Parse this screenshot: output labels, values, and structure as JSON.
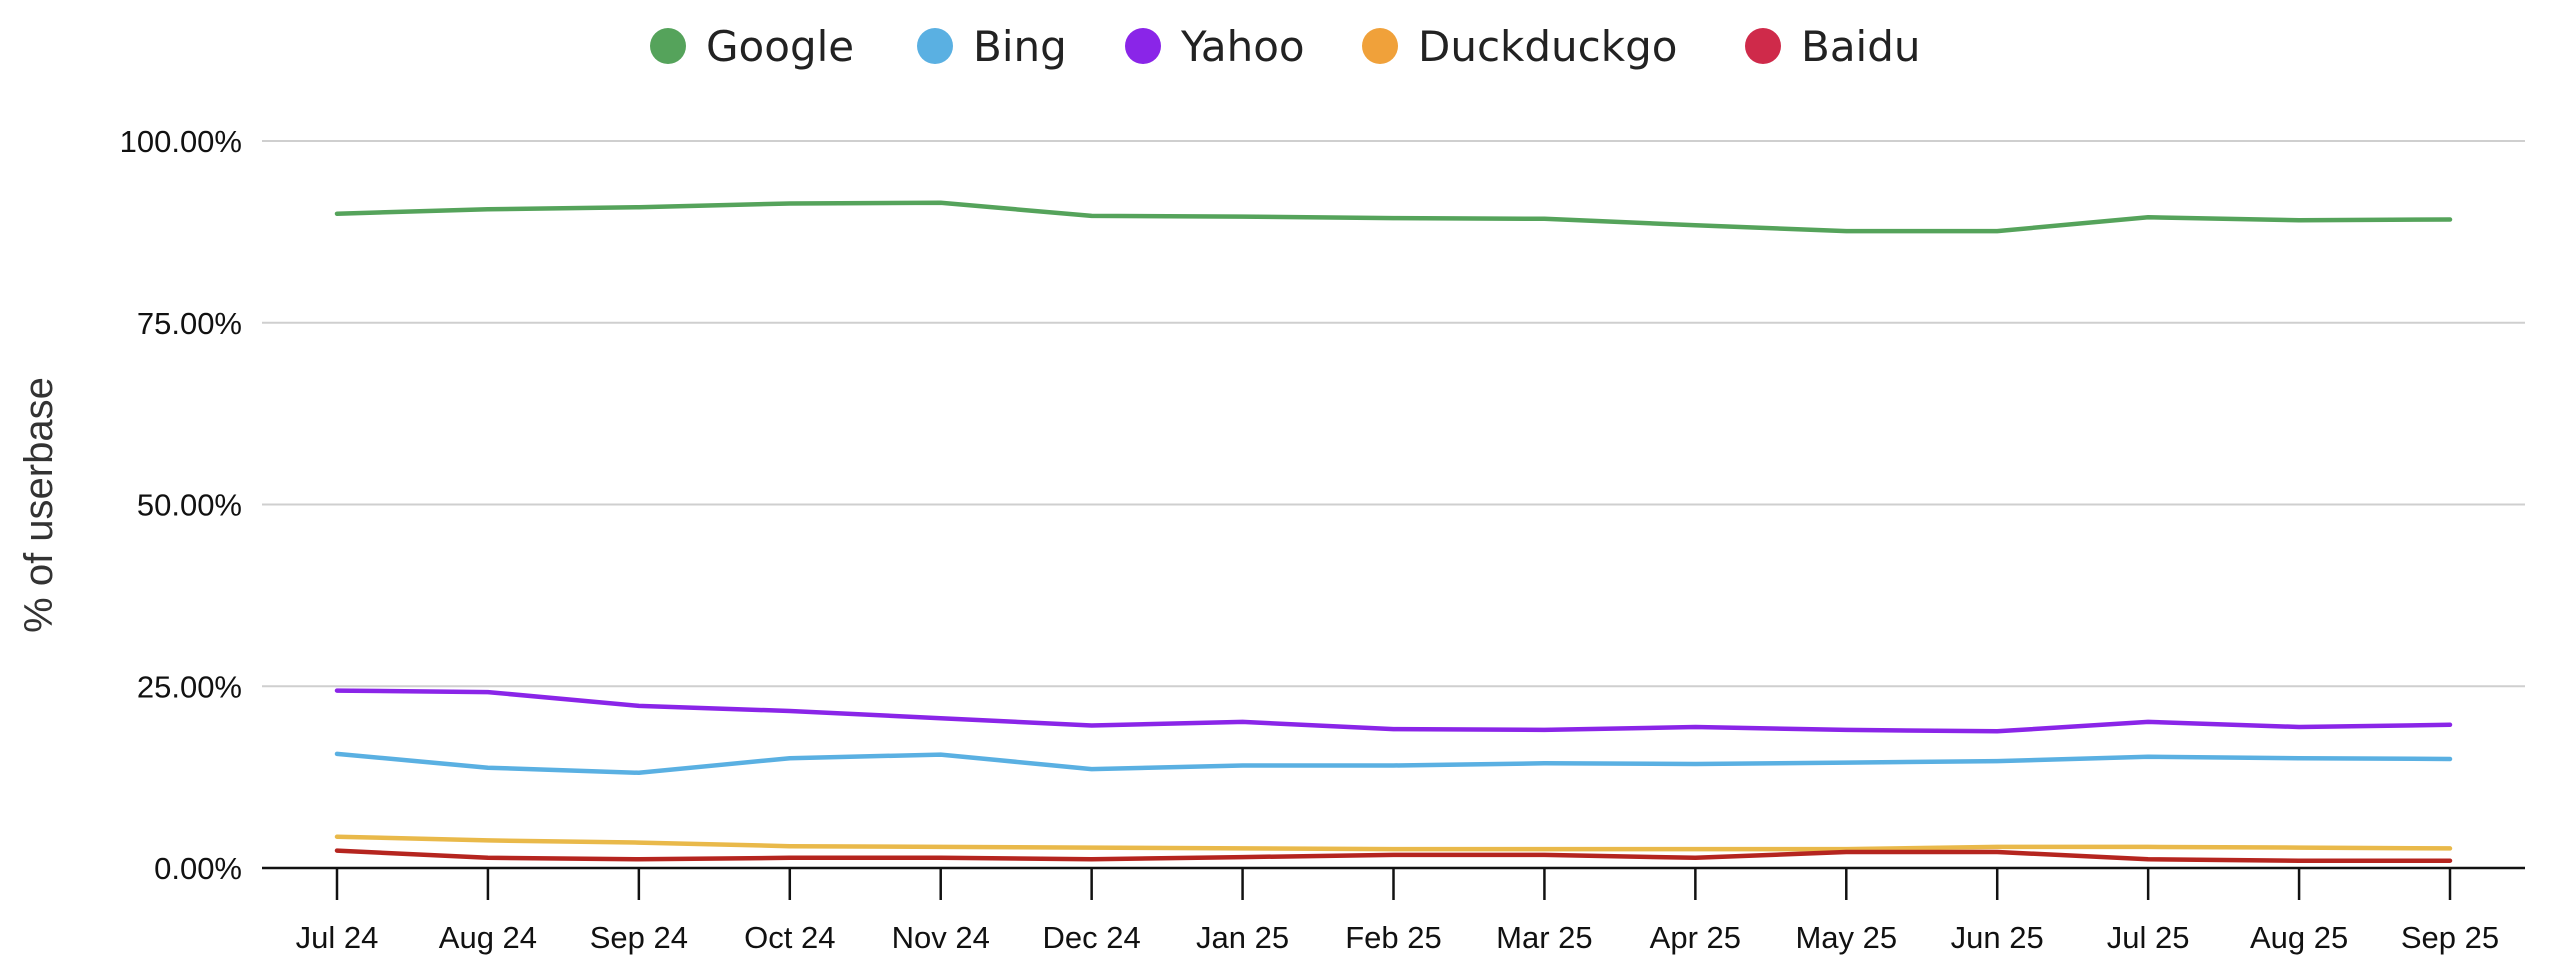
{
  "chart_data": {
    "type": "line",
    "title": "",
    "xlabel": "",
    "ylabel": "% of userbase",
    "ylim": [
      0,
      100
    ],
    "yticks": [
      "0.00%",
      "25.00%",
      "50.00%",
      "75.00%",
      "100.00%"
    ],
    "ytick_values": [
      0,
      25,
      50,
      75,
      100
    ],
    "grid": "horizontal",
    "legend_position": "top-center",
    "categories": [
      "Jul 24",
      "Aug 24",
      "Sep 24",
      "Oct 24",
      "Nov 24",
      "Dec 24",
      "Jan 25",
      "Feb 25",
      "Mar 25",
      "Apr 25",
      "May 25",
      "Jun 25",
      "Jul 25",
      "Aug 25",
      "Sep 25"
    ],
    "series": [
      {
        "name": "Google",
        "color": "#55a35b",
        "line_color": "#55a35b",
        "values": [
          90.0,
          90.6,
          90.9,
          91.4,
          91.5,
          89.7,
          89.6,
          89.4,
          89.3,
          88.4,
          87.6,
          87.6,
          89.5,
          89.1,
          89.2
        ]
      },
      {
        "name": "Bing",
        "color": "#5ab0e2",
        "line_color": "#5ab0e2",
        "values": [
          15.7,
          13.8,
          13.1,
          15.1,
          15.6,
          13.6,
          14.1,
          14.1,
          14.4,
          14.3,
          14.5,
          14.7,
          15.3,
          15.1,
          15.0
        ]
      },
      {
        "name": "Yahoo",
        "color": "#8a25e8",
        "line_color": "#8a25e8",
        "values": [
          24.4,
          24.2,
          22.3,
          21.6,
          20.6,
          19.6,
          20.1,
          19.1,
          19.0,
          19.4,
          19.0,
          18.8,
          20.1,
          19.4,
          19.7
        ]
      },
      {
        "name": "Duckduckgo",
        "color": "#f0a13a",
        "line_color": "#e9b94a",
        "values": [
          4.3,
          3.8,
          3.5,
          3.0,
          2.9,
          2.8,
          2.7,
          2.6,
          2.6,
          2.6,
          2.6,
          2.9,
          2.9,
          2.8,
          2.7
        ]
      },
      {
        "name": "Baidu",
        "color": "#cf2a4a",
        "line_color": "#b5251f",
        "values": [
          2.4,
          1.4,
          1.2,
          1.4,
          1.4,
          1.2,
          1.5,
          1.8,
          1.8,
          1.4,
          2.2,
          2.2,
          1.2,
          1.0,
          1.0
        ]
      }
    ]
  }
}
